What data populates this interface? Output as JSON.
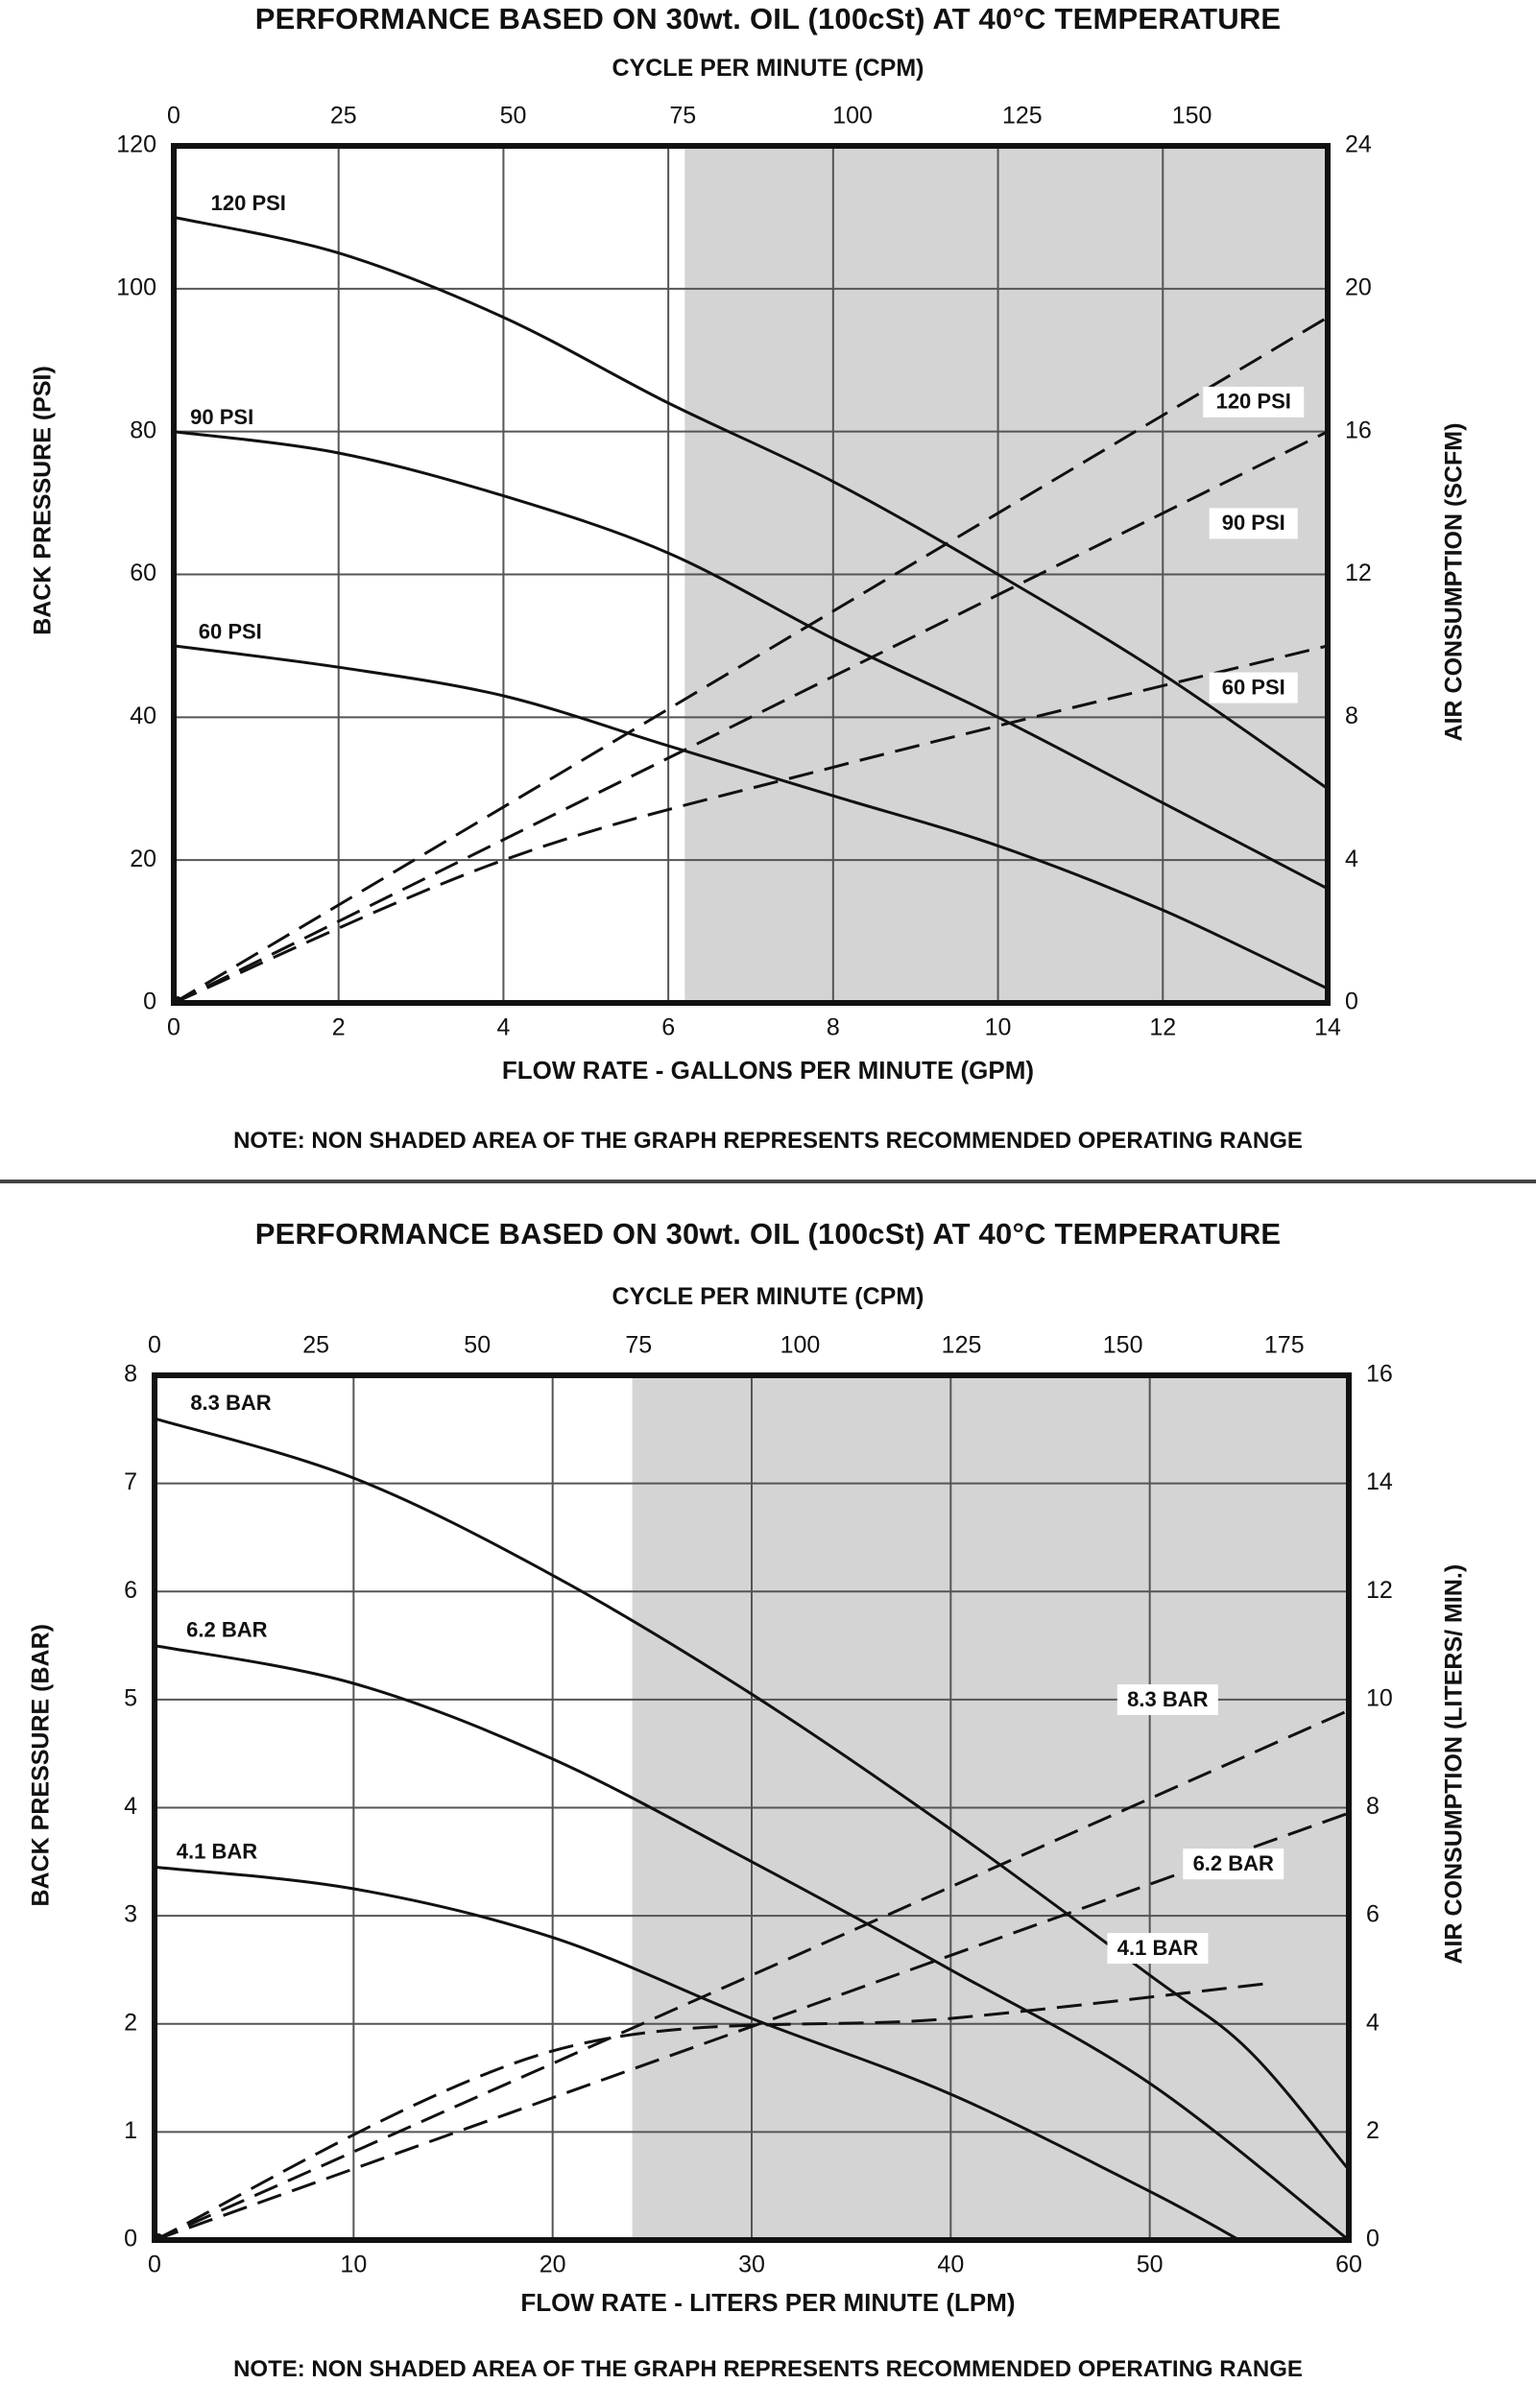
{
  "chart_data": [
    {
      "type": "line",
      "title": "PERFORMANCE BASED ON 30wt. OIL (100cSt) AT 40°C TEMPERATURE",
      "x_top_label": "CYCLE PER MINUTE (CPM)",
      "xlabel": "FLOW RATE - GALLONS PER MINUTE (GPM)",
      "ylabel_left": "BACK PRESSURE  (PSI)",
      "ylabel_right": "AIR CONSUMPTION (SCFM)",
      "note": "NOTE:  NON SHADED AREA OF THE GRAPH REPRESENTS RECOMMENDED OPERATING RANGE",
      "xlim": [
        0,
        14
      ],
      "ylim_left": [
        0,
        120
      ],
      "ylim_right": [
        0,
        24
      ],
      "top_axis_range": [
        0,
        170
      ],
      "x_ticks": [
        0,
        2,
        4,
        6,
        8,
        10,
        12,
        14
      ],
      "y_left_ticks": [
        0,
        20,
        40,
        60,
        80,
        100,
        120
      ],
      "y_right_ticks": [
        0,
        4,
        8,
        12,
        16,
        20,
        24
      ],
      "top_ticks": [
        0,
        25,
        50,
        75,
        100,
        125,
        150
      ],
      "shaded_from_x": 6.2,
      "grid": true,
      "pressure_series": [
        {
          "name": "120 PSI",
          "x": [
            0,
            2,
            4,
            6,
            8,
            10,
            12,
            14
          ],
          "y": [
            110,
            105,
            96,
            84,
            73,
            60,
            46,
            30
          ],
          "label_x": 0.45,
          "label_y": 111
        },
        {
          "name": "90 PSI",
          "x": [
            0,
            2,
            4,
            6,
            8,
            10,
            12,
            14
          ],
          "y": [
            80,
            77,
            71,
            63,
            51,
            40,
            28,
            16
          ],
          "label_x": 0.2,
          "label_y": 81
        },
        {
          "name": "60 PSI",
          "x": [
            0,
            2,
            4,
            6,
            8,
            10,
            12,
            14
          ],
          "y": [
            50,
            47,
            43,
            36,
            29,
            22,
            13,
            2
          ],
          "label_x": 0.3,
          "label_y": 51
        }
      ],
      "air_series": [
        {
          "name": "120 PSI",
          "x": [
            0,
            14
          ],
          "y": [
            0,
            19.2
          ],
          "label_x": 13.1,
          "label_y": 16.8
        },
        {
          "name": "90 PSI",
          "x": [
            0,
            14
          ],
          "y": [
            0,
            16
          ],
          "label_x": 13.1,
          "label_y": 13.4
        },
        {
          "name": "60 PSI",
          "x": [
            0,
            4,
            8,
            14
          ],
          "y": [
            0,
            4,
            6.6,
            10
          ],
          "label_x": 13.1,
          "label_y": 8.8
        }
      ]
    },
    {
      "type": "line",
      "title": "PERFORMANCE BASED ON 30wt. OIL (100cSt) AT 40°C TEMPERATURE",
      "x_top_label": "CYCLE PER MINUTE (CPM)",
      "xlabel": "FLOW RATE - LITERS PER MINUTE (LPM)",
      "ylabel_left": "BACK PRESSURE (BAR)",
      "ylabel_right": "AIR CONSUMPTION (LITERS/ MIN.)",
      "note": "NOTE: NON SHADED AREA OF THE GRAPH REPRESENTS RECOMMENDED OPERATING RANGE",
      "xlim": [
        0,
        60
      ],
      "ylim_left": [
        0,
        8
      ],
      "ylim_right": [
        0,
        16
      ],
      "top_axis_range": [
        0,
        185
      ],
      "x_ticks": [
        0,
        10,
        20,
        30,
        40,
        50,
        60
      ],
      "y_left_ticks": [
        0,
        1,
        2,
        3,
        4,
        5,
        6,
        7,
        8
      ],
      "y_right_ticks": [
        0,
        2,
        4,
        6,
        8,
        10,
        12,
        14,
        16
      ],
      "top_ticks": [
        0,
        25,
        50,
        75,
        100,
        125,
        150,
        175
      ],
      "shaded_from_x": 24,
      "grid": true,
      "pressure_series": [
        {
          "name": "8.3 BAR",
          "x": [
            0,
            10,
            20,
            30,
            40,
            50,
            55,
            60
          ],
          "y": [
            7.6,
            7.05,
            6.15,
            5.05,
            3.8,
            2.45,
            1.75,
            0.65
          ],
          "label_x": 1.8,
          "label_y": 7.68
        },
        {
          "name": "6.2 BAR",
          "x": [
            0,
            10,
            20,
            30,
            40,
            50,
            60
          ],
          "y": [
            5.5,
            5.15,
            4.45,
            3.5,
            2.5,
            1.45,
            0
          ],
          "label_x": 1.6,
          "label_y": 5.58
        },
        {
          "name": "4.1 BAR",
          "x": [
            0,
            10,
            20,
            30,
            40,
            50,
            54.5
          ],
          "y": [
            3.45,
            3.25,
            2.8,
            2.05,
            1.35,
            0.45,
            0
          ],
          "label_x": 1.1,
          "label_y": 3.53
        }
      ],
      "air_series": [
        {
          "name": "8.3 BAR",
          "x": [
            0,
            60
          ],
          "y": [
            0,
            9.8
          ],
          "label_x": 50.9,
          "label_y": 9.98
        },
        {
          "name": "6.2 BAR",
          "x": [
            0,
            60
          ],
          "y": [
            0,
            7.9
          ],
          "label_x": 54.2,
          "label_y": 6.94
        },
        {
          "name": "4.1 BAR",
          "x": [
            0,
            20,
            40,
            56
          ],
          "y": [
            0,
            3.5,
            4.1,
            4.75
          ],
          "label_x": 50.4,
          "label_y": 5.38
        }
      ]
    }
  ]
}
